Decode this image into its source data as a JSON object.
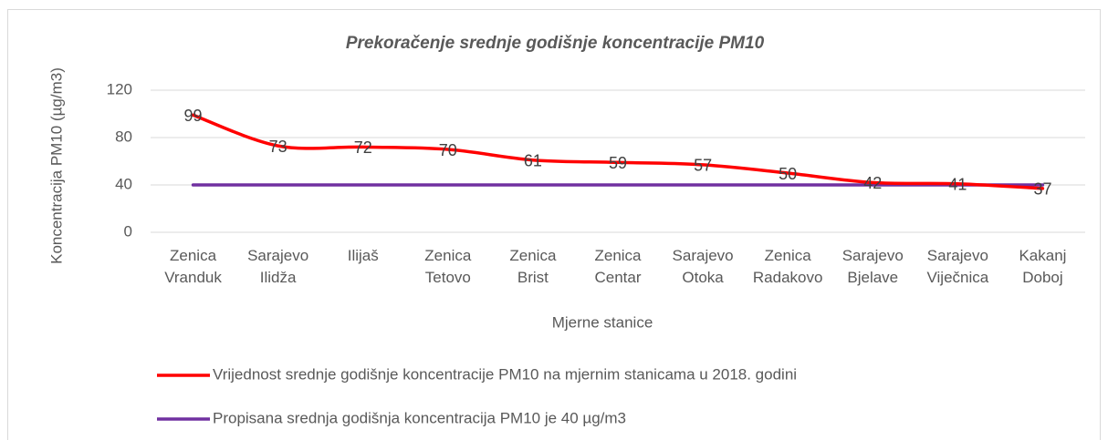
{
  "chart_data": {
    "type": "line",
    "title": "Prekoračenje srednje godišnje koncentracije PM10",
    "x_label": "Mjerne stanice",
    "y_label": "Koncentracija PM10 (µg/m3)",
    "categories": [
      "Zenica Vranduk",
      "Sarajevo Ilidža",
      "Ilijaš",
      "Zenica Tetovo",
      "Zenica Brist",
      "Zenica Centar",
      "Sarajevo Otoka",
      "Zenica Radakovo",
      "Sarajevo Bjelave",
      "Sarajevo Viječnica",
      "Kakanj Doboj"
    ],
    "series": [
      {
        "name": "Vrijednost srednje godišnje koncentracije PM10 na mjernim stanicama u 2018. godini",
        "color": "#ff0000",
        "smooth": true,
        "data_labels": true,
        "values": [
          99,
          73,
          72,
          70,
          61,
          59,
          57,
          50,
          42,
          41,
          37
        ]
      },
      {
        "name": "Propisana srednja godišnja koncentracija PM10 je 40 µg/m3",
        "color": "#7030a0",
        "smooth": false,
        "data_labels": false,
        "values": [
          40,
          40,
          40,
          40,
          40,
          40,
          40,
          40,
          40,
          40,
          40
        ]
      }
    ],
    "ylim": [
      0,
      120
    ],
    "yticks": [
      0,
      40,
      80,
      120
    ],
    "grid": true,
    "legend": "bottom"
  }
}
